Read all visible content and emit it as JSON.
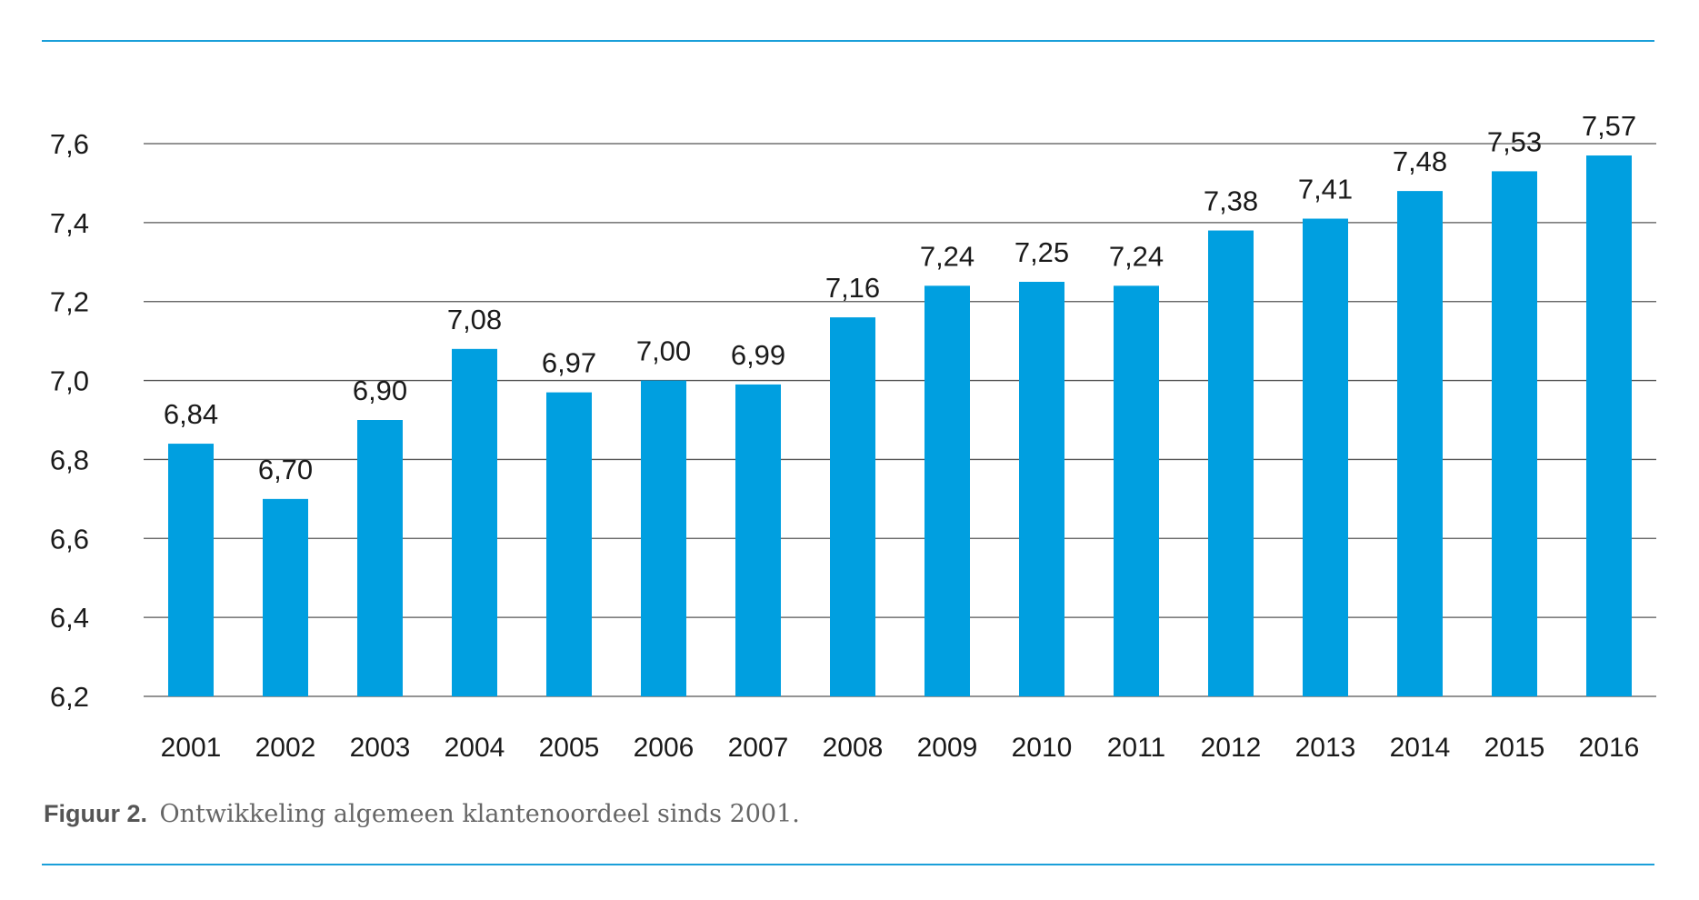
{
  "colors": {
    "bar": "#009fe0",
    "gridline": "#555555",
    "rule": "#1a9fd9"
  },
  "caption": {
    "figure_label": "Figuur 2.",
    "text": "Ontwikkeling algemeen klantenoordeel sinds 2001."
  },
  "chart_data": {
    "type": "bar",
    "categories": [
      "2001",
      "2002",
      "2003",
      "2004",
      "2005",
      "2006",
      "2007",
      "2008",
      "2009",
      "2010",
      "2011",
      "2012",
      "2013",
      "2014",
      "2015",
      "2016"
    ],
    "values": [
      6.84,
      6.7,
      6.9,
      7.08,
      6.97,
      7.0,
      6.99,
      7.16,
      7.24,
      7.25,
      7.24,
      7.38,
      7.41,
      7.48,
      7.53,
      7.57
    ],
    "data_labels": [
      "6,84",
      "6,70",
      "6,90",
      "7,08",
      "6,97",
      "7,00",
      "6,99",
      "7,16",
      "7,24",
      "7,25",
      "7,24",
      "7,38",
      "7,41",
      "7,48",
      "7,53",
      "7,57"
    ],
    "yticks": [
      6.2,
      6.4,
      6.6,
      6.8,
      7.0,
      7.2,
      7.4,
      7.6
    ],
    "ytick_labels": [
      "6,2",
      "6,4",
      "6,6",
      "6,8",
      "7,0",
      "7,2",
      "7,4",
      "7,6"
    ],
    "ylim": [
      6.2,
      7.6
    ],
    "grid": true,
    "legend": "none"
  }
}
